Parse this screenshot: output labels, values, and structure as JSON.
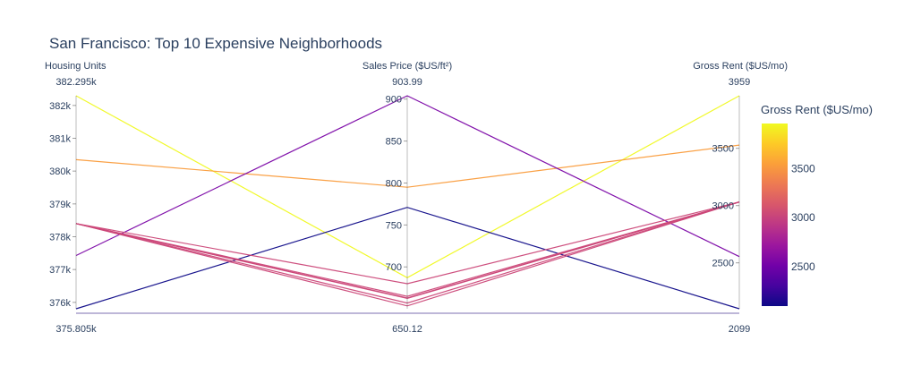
{
  "chart_data": {
    "type": "parallel_coordinates",
    "title": "San Francisco: Top 10 Expensive Neighborhoods",
    "dimensions": [
      {
        "label": "Housing Units",
        "range": [
          375805,
          382295
        ],
        "range_min_label": "375.805k",
        "range_max_label": "382.295k",
        "ticks": [
          376000,
          377000,
          378000,
          379000,
          380000,
          381000,
          382000
        ],
        "tick_labels": [
          "376k",
          "377k",
          "378k",
          "379k",
          "380k",
          "381k",
          "382k"
        ]
      },
      {
        "label": "Sales Price ($US/ft²)",
        "range": [
          650.12,
          903.99
        ],
        "range_min_label": "650.12",
        "range_max_label": "903.99",
        "ticks": [
          700,
          750,
          800,
          850,
          900
        ],
        "tick_labels": [
          "700",
          "750",
          "800",
          "850",
          "900"
        ]
      },
      {
        "label": "Gross Rent ($US/mo)",
        "range": [
          2099,
          3959
        ],
        "range_min_label": "2099",
        "range_max_label": "3959",
        "ticks": [
          2500,
          3000,
          3500
        ],
        "tick_labels": [
          "2500",
          "3000",
          "3500"
        ]
      }
    ],
    "records": [
      {
        "values": [
          382295,
          687.09,
          3959
        ]
      },
      {
        "values": [
          380348,
          795.01,
          3528
        ]
      },
      {
        "values": [
          377427,
          903.99,
          2555
        ]
      },
      {
        "values": [
          375805,
          771.0,
          2099
        ]
      },
      {
        "values": [
          378401,
          665.0,
          3031
        ]
      },
      {
        "values": [
          378401,
          663.0,
          3031
        ]
      },
      {
        "values": [
          378401,
          662.5,
          3031
        ]
      },
      {
        "values": [
          378401,
          657.0,
          3031
        ]
      },
      {
        "values": [
          378401,
          653.5,
          3031
        ]
      },
      {
        "values": [
          378401,
          680.0,
          3031
        ]
      }
    ],
    "colorbar": {
      "title": "Gross Rent ($US/mo)",
      "dimension": "Gross Rent ($US/mo)",
      "range": [
        2099,
        3959
      ],
      "ticks": [
        2500,
        3000,
        3500
      ],
      "tick_labels": [
        "2500",
        "3000",
        "3500"
      ],
      "colorscale": [
        "#0d0887",
        "#46039f",
        "#7201a8",
        "#9c179e",
        "#bd3786",
        "#d8576b",
        "#ed7953",
        "#fb9f3a",
        "#fdca26",
        "#f0f921"
      ]
    }
  }
}
